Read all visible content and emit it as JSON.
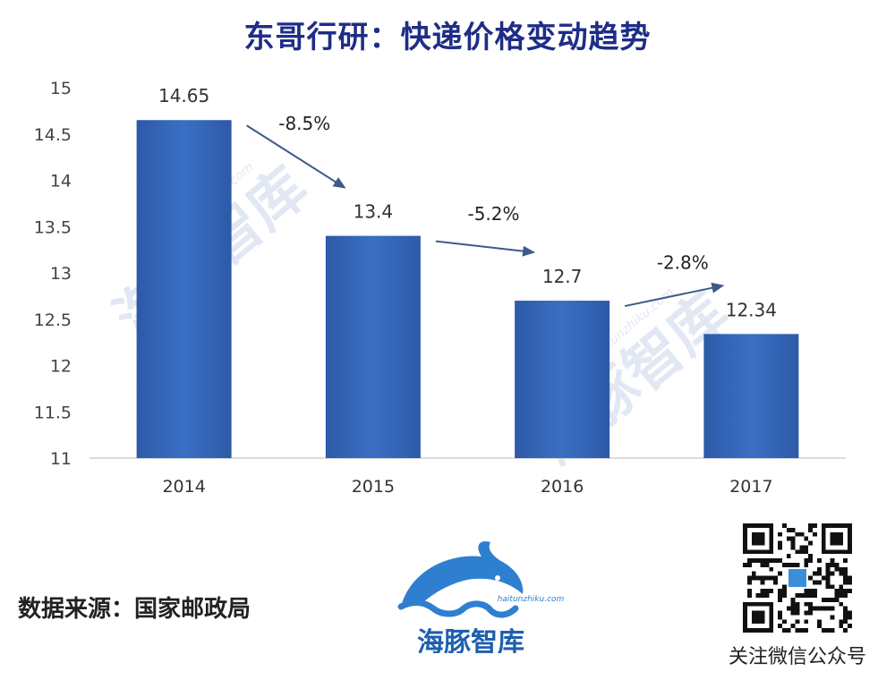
{
  "title": "东哥行研：快递价格变动趋势",
  "source_note": "数据来源：国家邮政局",
  "qr_caption": "关注微信公众号",
  "watermark_text": "海豚智库",
  "watermark_url": "haitunzhiku.com",
  "colors": {
    "bar": "#3a6fc4",
    "bar_dark": "#2d5aa8",
    "title": "#1f2d86",
    "arrow": "#3d5a8a",
    "watermark": "#c9d6ea"
  },
  "chart_data": {
    "type": "bar",
    "title": "东哥行研：快递价格变动趋势",
    "categories": [
      "2014",
      "2015",
      "2016",
      "2017"
    ],
    "values": [
      14.65,
      13.4,
      12.7,
      12.34
    ],
    "data_labels": [
      "14.65",
      "13.4",
      "12.7",
      "12.34"
    ],
    "changes": [
      "-8.5%",
      "-5.2%",
      "-2.8%"
    ],
    "ylim": [
      11,
      15
    ],
    "yticks": [
      "11",
      "11.5",
      "12",
      "12.5",
      "13",
      "13.5",
      "14",
      "14.5",
      "15"
    ],
    "xlabel": "",
    "ylabel": "",
    "grid": false,
    "legend": "none"
  }
}
